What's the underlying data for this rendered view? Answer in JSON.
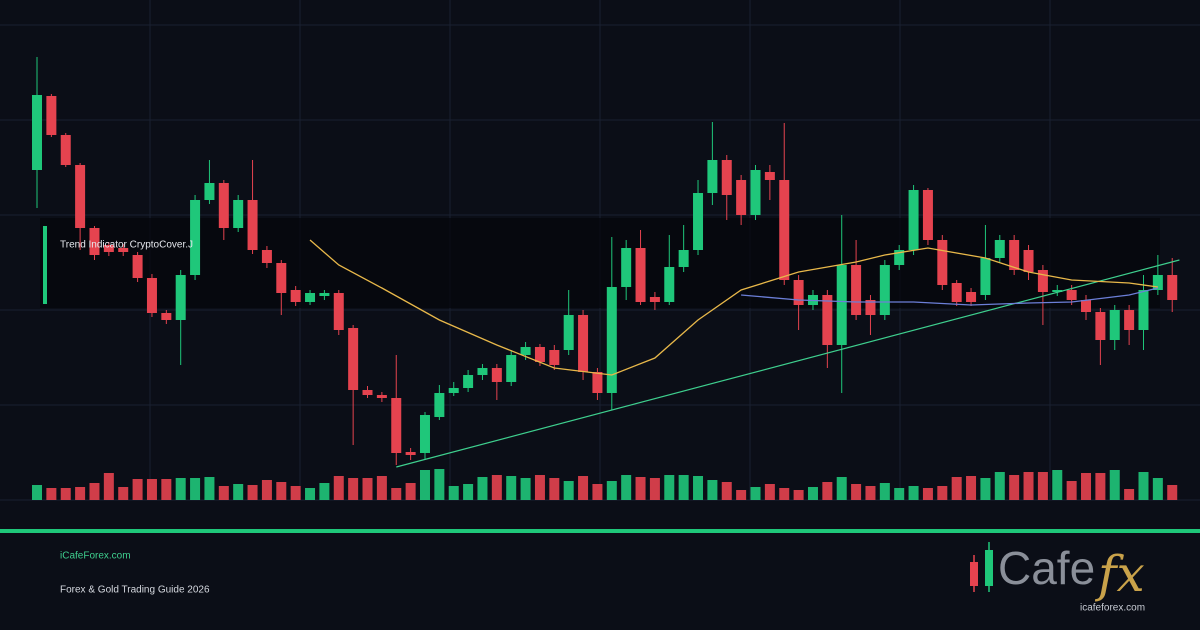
{
  "chart_data": {
    "type": "candlestick",
    "annotation": "Trend Indicator CryptoCover.J",
    "up_color": "#1fc77a",
    "down_color": "#e5434f",
    "ylim": [
      0,
      475
    ],
    "vlim": [
      0,
      100
    ],
    "open": [
      330,
      404,
      365,
      335,
      272,
      255,
      252,
      245,
      222,
      187,
      180,
      225,
      300,
      317,
      272,
      300,
      250,
      237,
      210,
      198,
      204,
      207,
      172,
      110,
      105,
      102,
      48,
      47,
      83,
      107,
      112,
      125,
      132,
      118,
      145,
      153,
      150,
      150,
      185,
      128,
      107,
      213,
      252,
      203,
      198,
      233,
      250,
      307,
      340,
      320,
      285,
      328,
      320,
      220,
      195,
      205,
      155,
      235,
      200,
      185,
      235,
      250,
      310,
      260,
      217,
      208,
      205,
      242,
      260,
      250,
      230,
      208,
      210,
      200,
      188,
      160,
      190,
      170,
      210,
      225
    ],
    "close": [
      405,
      365,
      335,
      272,
      245,
      248,
      248,
      222,
      187,
      180,
      225,
      300,
      317,
      272,
      300,
      250,
      237,
      207,
      198,
      207,
      207,
      170,
      110,
      105,
      102,
      47,
      45,
      85,
      107,
      112,
      125,
      132,
      118,
      145,
      153,
      138,
      135,
      185,
      128,
      107,
      213,
      252,
      198,
      198,
      233,
      250,
      307,
      340,
      305,
      285,
      330,
      320,
      220,
      195,
      205,
      155,
      235,
      185,
      185,
      235,
      250,
      310,
      260,
      215,
      198,
      198,
      242,
      260,
      230,
      228,
      208,
      210,
      200,
      188,
      160,
      190,
      170,
      210,
      225,
      200
    ],
    "high": [
      443,
      406,
      367,
      337,
      274,
      258,
      256,
      248,
      226,
      190,
      230,
      305,
      340,
      320,
      305,
      340,
      254,
      240,
      214,
      210,
      210,
      210,
      175,
      114,
      108,
      145,
      52,
      88,
      115,
      118,
      130,
      136,
      136,
      150,
      158,
      156,
      155,
      210,
      190,
      132,
      263,
      260,
      270,
      208,
      265,
      275,
      320,
      378,
      345,
      325,
      335,
      335,
      377,
      225,
      210,
      210,
      285,
      260,
      205,
      240,
      255,
      315,
      312,
      265,
      220,
      212,
      275,
      265,
      265,
      255,
      235,
      215,
      215,
      205,
      192,
      195,
      195,
      225,
      245,
      242
    ],
    "low": [
      292,
      363,
      333,
      250,
      240,
      244,
      244,
      218,
      183,
      176,
      135,
      220,
      296,
      260,
      268,
      246,
      232,
      185,
      194,
      195,
      200,
      165,
      55,
      102,
      98,
      35,
      40,
      40,
      80,
      104,
      108,
      120,
      100,
      114,
      140,
      134,
      130,
      145,
      120,
      100,
      90,
      200,
      195,
      190,
      195,
      228,
      245,
      295,
      280,
      275,
      280,
      300,
      215,
      170,
      190,
      132,
      107,
      180,
      165,
      180,
      230,
      245,
      255,
      210,
      194,
      194,
      200,
      238,
      225,
      220,
      175,
      204,
      195,
      180,
      135,
      150,
      155,
      150,
      205,
      188
    ],
    "volume": [
      15,
      12,
      12,
      13,
      17,
      27,
      13,
      21,
      21,
      21,
      22,
      22,
      23,
      14,
      16,
      15,
      20,
      18,
      14,
      12,
      17,
      24,
      22,
      22,
      24,
      12,
      17,
      30,
      31,
      14,
      16,
      23,
      25,
      24,
      22,
      25,
      22,
      19,
      24,
      16,
      19,
      25,
      23,
      22,
      25,
      25,
      24,
      20,
      18,
      10,
      13,
      16,
      12,
      10,
      13,
      18,
      23,
      16,
      14,
      17,
      12,
      14,
      12,
      14,
      23,
      24,
      22,
      28,
      25,
      28,
      28,
      30,
      19,
      27,
      27,
      30,
      11,
      28,
      22,
      15
    ],
    "trendline": {
      "color": "#3ecf8e",
      "x": [
        25,
        79.5
      ],
      "values": [
        33,
        240
      ]
    },
    "ma_fast": {
      "color": "#e8b84a",
      "x": [
        19,
        21,
        24,
        28,
        32,
        36,
        40,
        43,
        46,
        49,
        53,
        57,
        59,
        62,
        66,
        69,
        72,
        76,
        78
      ],
      "values": [
        260,
        235,
        212,
        180,
        155,
        132,
        125,
        142,
        180,
        210,
        228,
        238,
        245,
        252,
        242,
        228,
        220,
        217,
        213
      ]
    },
    "ma_slow": {
      "color": "#6c7fd8",
      "x": [
        49,
        53,
        57,
        61,
        65,
        69,
        72,
        76,
        78
      ],
      "values": [
        205,
        200,
        198,
        198,
        195,
        197,
        198,
        205,
        212
      ]
    }
  },
  "branding": {
    "site": "iCafeForex.com",
    "guide": "Forex & Gold Trading Guide 2026",
    "logo_main": "Cafe",
    "logo_fx": "fx",
    "logo_url": "icafeforex.com"
  }
}
